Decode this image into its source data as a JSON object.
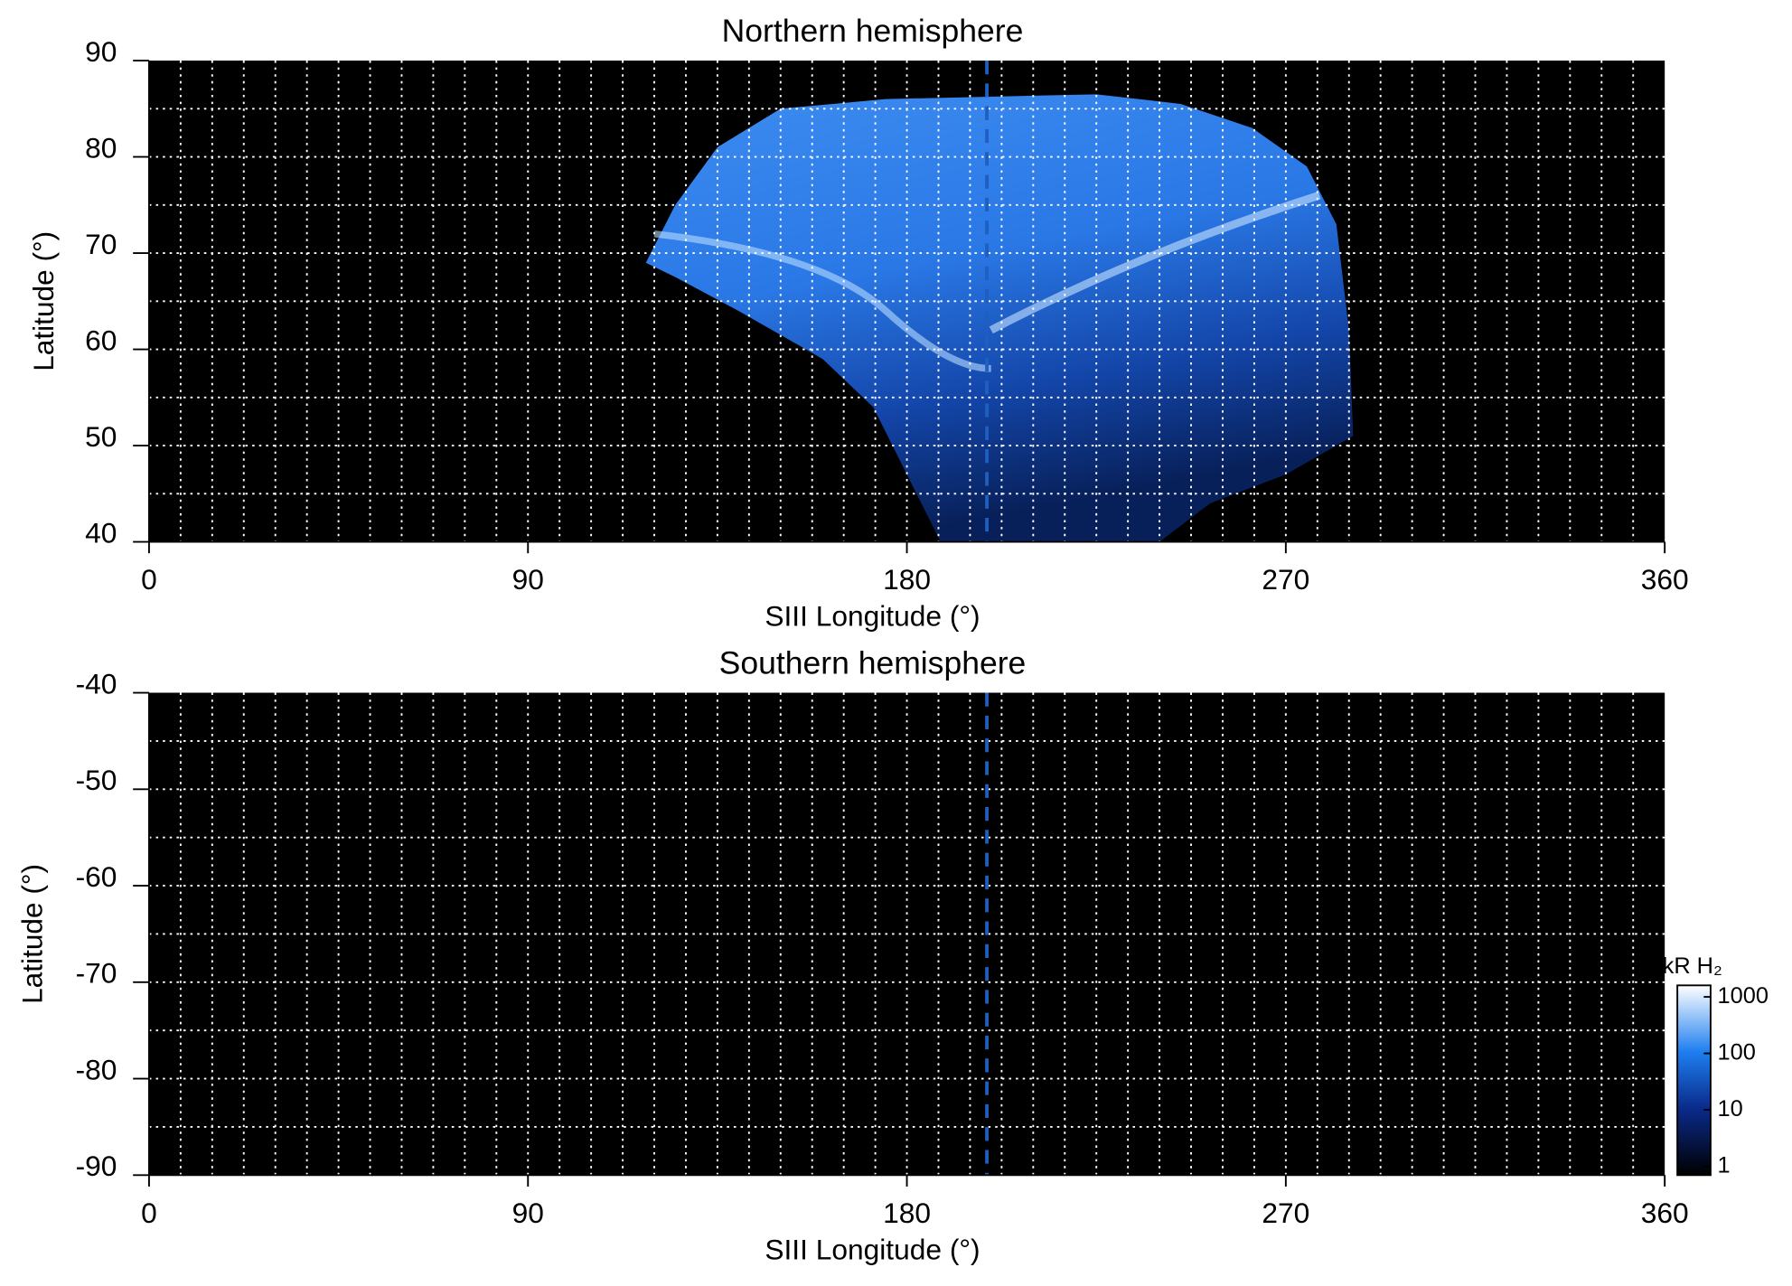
{
  "chart_data": [
    {
      "type": "map",
      "title": "Northern hemisphere",
      "x_label": "SIII Longitude (°)",
      "y_label": "Latitude (°)",
      "xlim": [
        0,
        360
      ],
      "xticks": [
        0,
        90,
        180,
        270,
        360
      ],
      "ylim": [
        40,
        90
      ],
      "yticks": [
        40,
        50,
        60,
        70,
        80,
        90
      ],
      "grid": {
        "x_step": 7.5,
        "y_step": 5
      },
      "vline": 199,
      "background": "#000000",
      "vline_color": "#1f5fbf"
    },
    {
      "type": "map",
      "title": "Southern hemisphere",
      "x_label": "SIII Longitude (°)",
      "y_label": "Latitude (°)",
      "xlim": [
        0,
        360
      ],
      "xticks": [
        0,
        90,
        180,
        270,
        360
      ],
      "ylim": [
        -90,
        -40
      ],
      "yticks": [
        -90,
        -80,
        -70,
        -60,
        -50,
        -40
      ],
      "grid": {
        "x_step": 7.5,
        "y_step": 5
      },
      "vline": 199,
      "background": "#000000",
      "vline_color": "#1f5fbf",
      "colorbar": {
        "label": "kR H₂",
        "lim": [
          0.7,
          1600
        ],
        "ticks": [
          1,
          10,
          100,
          1000
        ],
        "log": true
      }
    }
  ]
}
